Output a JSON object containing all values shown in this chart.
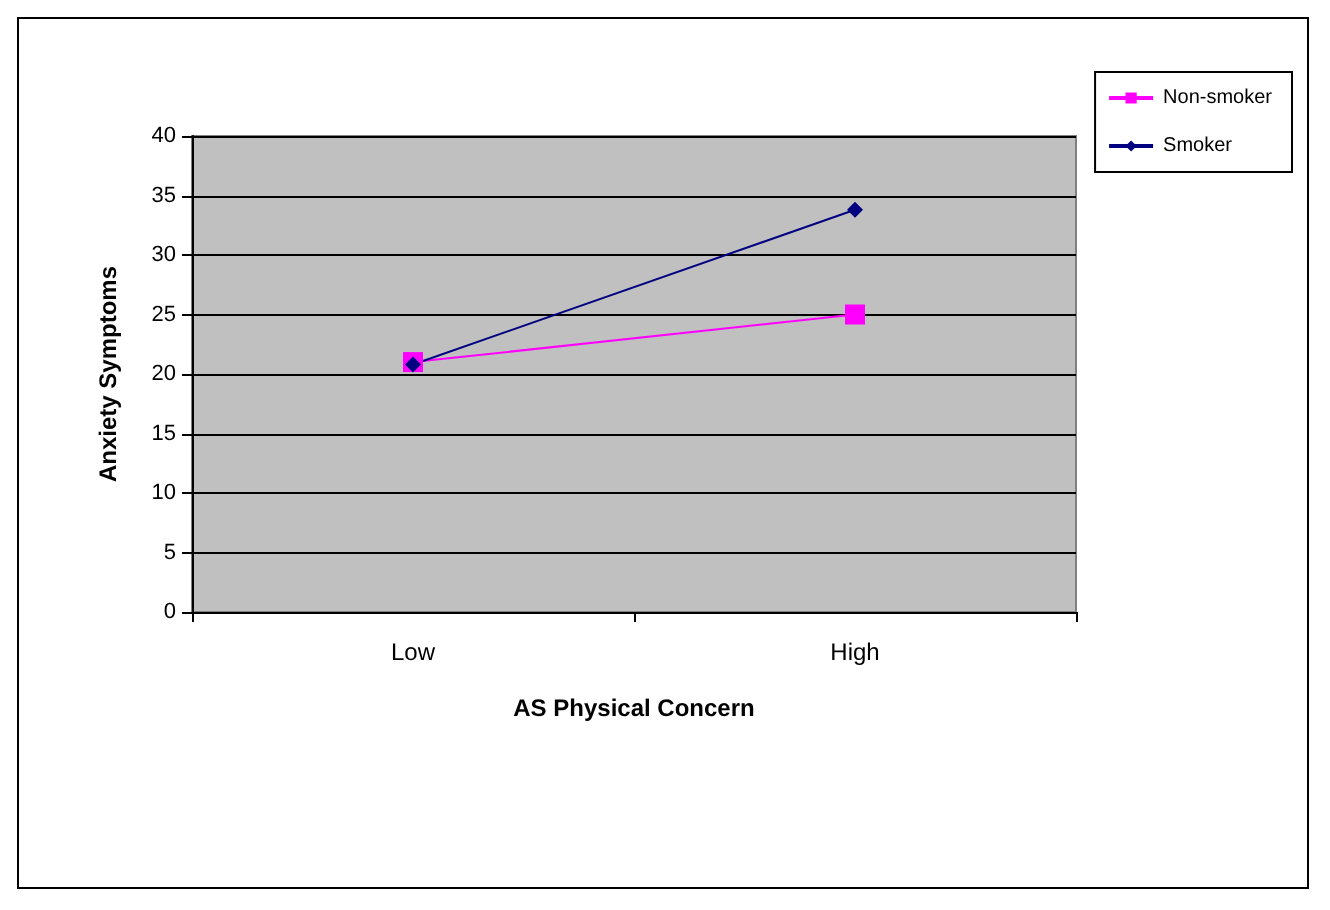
{
  "chart_data": {
    "type": "line",
    "xlabel": "AS Physical Concern",
    "ylabel": "Anxiety Symptoms",
    "categories": [
      "Low",
      "High"
    ],
    "series": [
      {
        "name": "Non-smoker",
        "color": "#ff00ff",
        "marker": "square",
        "values": [
          21,
          25
        ]
      },
      {
        "name": "Smoker",
        "color": "#000080",
        "marker": "diamond",
        "values": [
          20.8,
          33.8
        ]
      }
    ],
    "ylim": [
      0,
      40
    ],
    "yticks": [
      0,
      5,
      10,
      15,
      20,
      25,
      30,
      35,
      40
    ],
    "grid": "y",
    "legend": "top right",
    "line_style": "solid"
  }
}
